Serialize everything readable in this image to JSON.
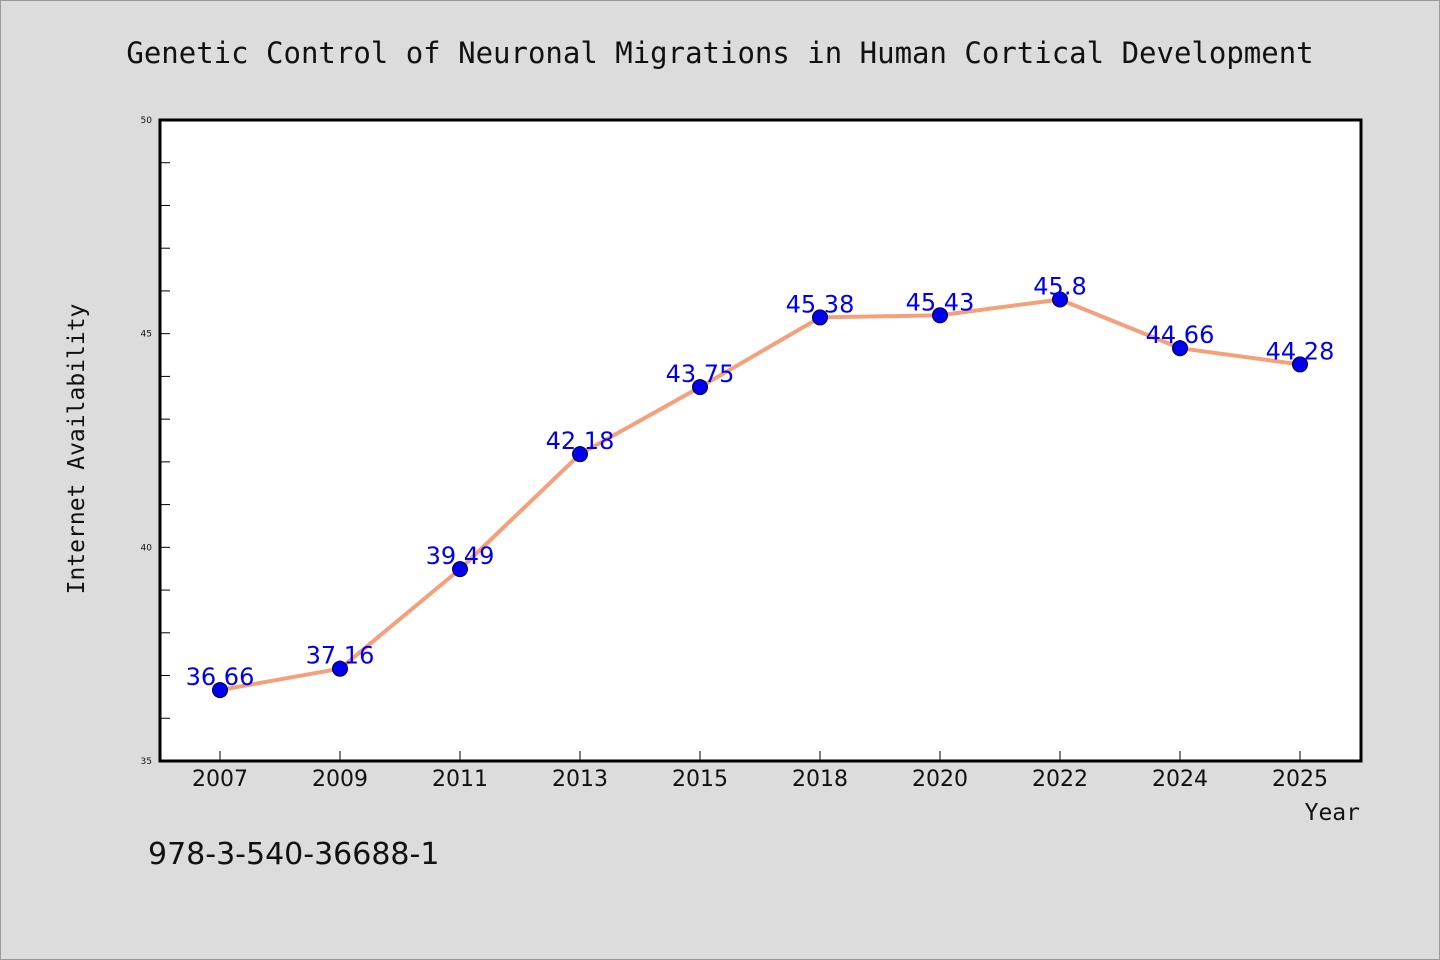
{
  "chart_data": {
    "type": "line",
    "title": "Genetic Control of Neuronal Migrations in Human Cortical Development",
    "xlabel": "Year",
    "ylabel": "Internet Availability",
    "categories": [
      "2007",
      "2009",
      "2011",
      "2013",
      "2015",
      "2018",
      "2020",
      "2022",
      "2024",
      "2025"
    ],
    "series": [
      {
        "values": [
          36.66,
          37.16,
          39.49,
          42.18,
          43.75,
          45.38,
          45.43,
          45.8,
          44.66,
          44.28
        ],
        "labels": [
          "36.66",
          "37.16",
          "39.49",
          "42.18",
          "43.75",
          "45.38",
          "45.43",
          "45.8",
          "44.66",
          "44.28"
        ],
        "line_color": "#f4a07a",
        "marker_color": "#0000ee",
        "label_color": "#0000ee"
      }
    ],
    "ylim": [
      35,
      50
    ],
    "yticks": [
      "35",
      "40",
      "45",
      "50"
    ],
    "grid": false,
    "legend": "none"
  },
  "footnote": "978-3-540-36688-1"
}
